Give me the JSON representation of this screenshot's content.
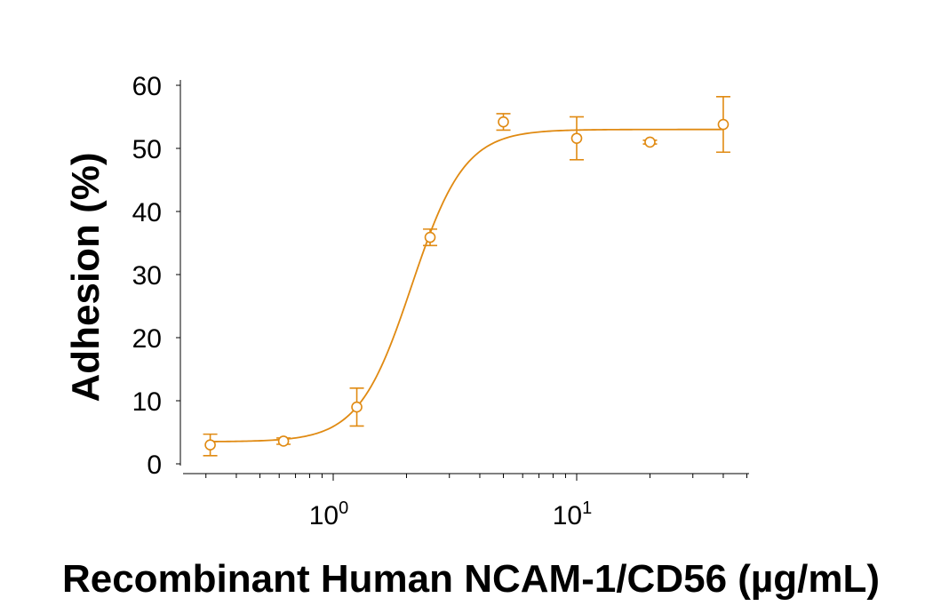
{
  "chart_data": {
    "type": "scatter",
    "title": "",
    "xlabel": "Recombinant Human NCAM-1/CD56 (µg/mL)",
    "ylabel": "Adhesion (%)",
    "x_scale": "log",
    "xlim": [
      0.25,
      50
    ],
    "ylim": [
      0,
      60
    ],
    "y_ticks": [
      0,
      10,
      20,
      30,
      40,
      50,
      60
    ],
    "x_ticks": [
      {
        "value": 1,
        "base": "10",
        "exp": "0"
      },
      {
        "value": 10,
        "base": "10",
        "exp": "1"
      }
    ],
    "color": "#E08A12",
    "grid": false,
    "legend": "none",
    "points": [
      {
        "x": 0.3125,
        "y": 3.0,
        "err": 1.7
      },
      {
        "x": 0.625,
        "y": 3.6,
        "err": 0.5
      },
      {
        "x": 1.25,
        "y": 9.0,
        "err": 3.0
      },
      {
        "x": 2.5,
        "y": 35.9,
        "err": 1.3
      },
      {
        "x": 5,
        "y": 54.2,
        "err": 1.3
      },
      {
        "x": 10,
        "y": 51.6,
        "err": 3.4
      },
      {
        "x": 20,
        "y": 51.0,
        "err": 0.3
      },
      {
        "x": 40,
        "y": 53.8,
        "err": 4.4
      }
    ],
    "fit_curve": {
      "model": "4PL",
      "bottom": 3.5,
      "top": 53.0,
      "ec50": 2.1,
      "hill": 4.0
    }
  }
}
